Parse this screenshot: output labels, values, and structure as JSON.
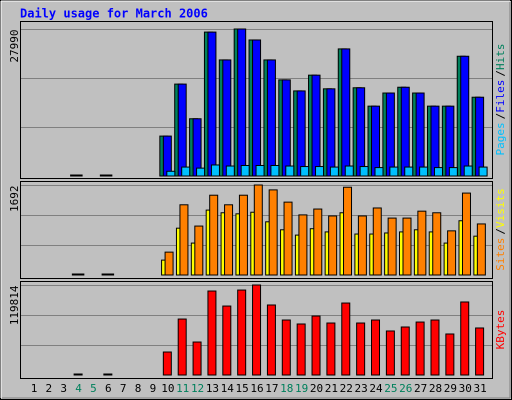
{
  "title": "Daily usage for March 2006",
  "chart_data": [
    {
      "type": "bar",
      "ylim": [
        0,
        27990
      ],
      "yticks": [
        27990
      ],
      "legend_separator": "/",
      "series": [
        {
          "name": "Hits",
          "color": "#00805C",
          "values": [
            0,
            0,
            0,
            100,
            0,
            100,
            0,
            0,
            0,
            7600,
            17500,
            10900,
            27400,
            22100,
            27990,
            25900,
            22100,
            18300,
            16200,
            19200,
            16600,
            24200,
            16800,
            13300,
            15800,
            16900,
            15800,
            13300,
            13300,
            22800,
            15000
          ]
        },
        {
          "name": "Files",
          "color": "#0000FF",
          "values": [
            0,
            0,
            0,
            100,
            0,
            100,
            0,
            0,
            0,
            7600,
            17500,
            10900,
            27400,
            22100,
            27990,
            25900,
            22100,
            18300,
            16200,
            19200,
            16600,
            24200,
            16800,
            13300,
            15800,
            16900,
            15800,
            13300,
            13300,
            22800,
            15000
          ]
        },
        {
          "name": "Pages",
          "color": "#00C0FF",
          "values": [
            0,
            0,
            0,
            0,
            0,
            0,
            0,
            0,
            0,
            900,
            1700,
            1500,
            2100,
            1900,
            2000,
            2000,
            2000,
            1900,
            1800,
            1800,
            1700,
            1900,
            1800,
            1600,
            1700,
            1700,
            1700,
            1600,
            1600,
            1900,
            1700
          ]
        }
      ]
    },
    {
      "type": "bar",
      "ylim": [
        0,
        1692
      ],
      "yticks": [
        1692
      ],
      "legend_separator": "/",
      "series": [
        {
          "name": "Visits",
          "color": "#FFFF00",
          "values": [
            0,
            0,
            0,
            10,
            0,
            10,
            0,
            0,
            0,
            280,
            880,
            600,
            1220,
            1170,
            1150,
            1180,
            1000,
            850,
            750,
            870,
            810,
            1170,
            770,
            770,
            790,
            810,
            850,
            810,
            600,
            1020,
            730
          ]
        },
        {
          "name": "Sites",
          "color": "#FF8000",
          "values": [
            0,
            0,
            0,
            10,
            0,
            10,
            0,
            0,
            0,
            430,
            1320,
            920,
            1500,
            1320,
            1500,
            1692,
            1600,
            1370,
            1130,
            1240,
            1110,
            1650,
            1110,
            1260,
            1070,
            1070,
            1200,
            1170,
            830,
            1540,
            960
          ]
        }
      ]
    },
    {
      "type": "bar",
      "ylim": [
        0,
        119814
      ],
      "yticks": [
        119814
      ],
      "categories": [
        "1",
        "2",
        "3",
        "4",
        "5",
        "6",
        "7",
        "8",
        "9",
        "10",
        "11",
        "12",
        "13",
        "14",
        "15",
        "16",
        "17",
        "18",
        "19",
        "20",
        "21",
        "22",
        "23",
        "24",
        "25",
        "26",
        "27",
        "28",
        "29",
        "30",
        "31"
      ],
      "category_colors": [
        "#000000",
        "#000000",
        "#000000",
        "#00805C",
        "#00805C",
        "#000000",
        "#000000",
        "#000000",
        "#000000",
        "#000000",
        "#00805C",
        "#00805C",
        "#000000",
        "#000000",
        "#000000",
        "#000000",
        "#000000",
        "#00805C",
        "#00805C",
        "#000000",
        "#000000",
        "#000000",
        "#000000",
        "#000000",
        "#00805C",
        "#00805C",
        "#000000",
        "#000000",
        "#000000",
        "#000000",
        "#000000"
      ],
      "series": [
        {
          "name": "KBytes",
          "color": "#FF0000",
          "values": [
            0,
            0,
            0,
            300,
            0,
            300,
            0,
            0,
            0,
            30600,
            74500,
            43900,
            111800,
            91800,
            113100,
            119814,
            93200,
            73200,
            67900,
            78500,
            69200,
            95800,
            69200,
            73200,
            58600,
            63900,
            70500,
            73200,
            54600,
            97200,
            62600
          ]
        }
      ]
    }
  ]
}
